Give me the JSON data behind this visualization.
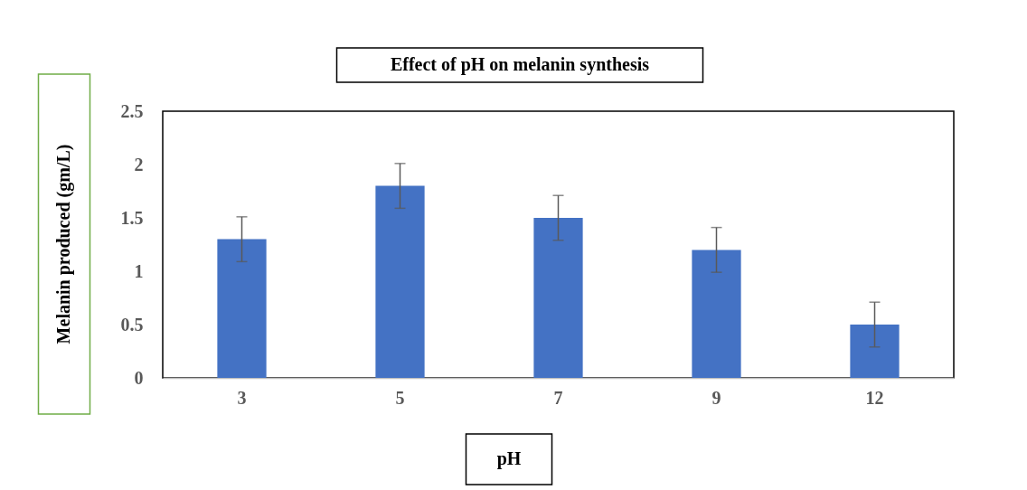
{
  "chart_data": {
    "type": "bar",
    "title": "Effect of  pH on melanin synthesis",
    "xlabel": "pH",
    "ylabel": "Melanin produced (gm/L)",
    "categories": [
      "3",
      "5",
      "7",
      "9",
      "12"
    ],
    "values": [
      1.3,
      1.8,
      1.5,
      1.2,
      0.5
    ],
    "errors": [
      0.21,
      0.21,
      0.21,
      0.21,
      0.21
    ],
    "color": "#4472c4",
    "ylim": [
      0,
      2.5
    ],
    "yticks": [
      0,
      0.5,
      1,
      1.5,
      2,
      2.5
    ],
    "grid": false
  }
}
